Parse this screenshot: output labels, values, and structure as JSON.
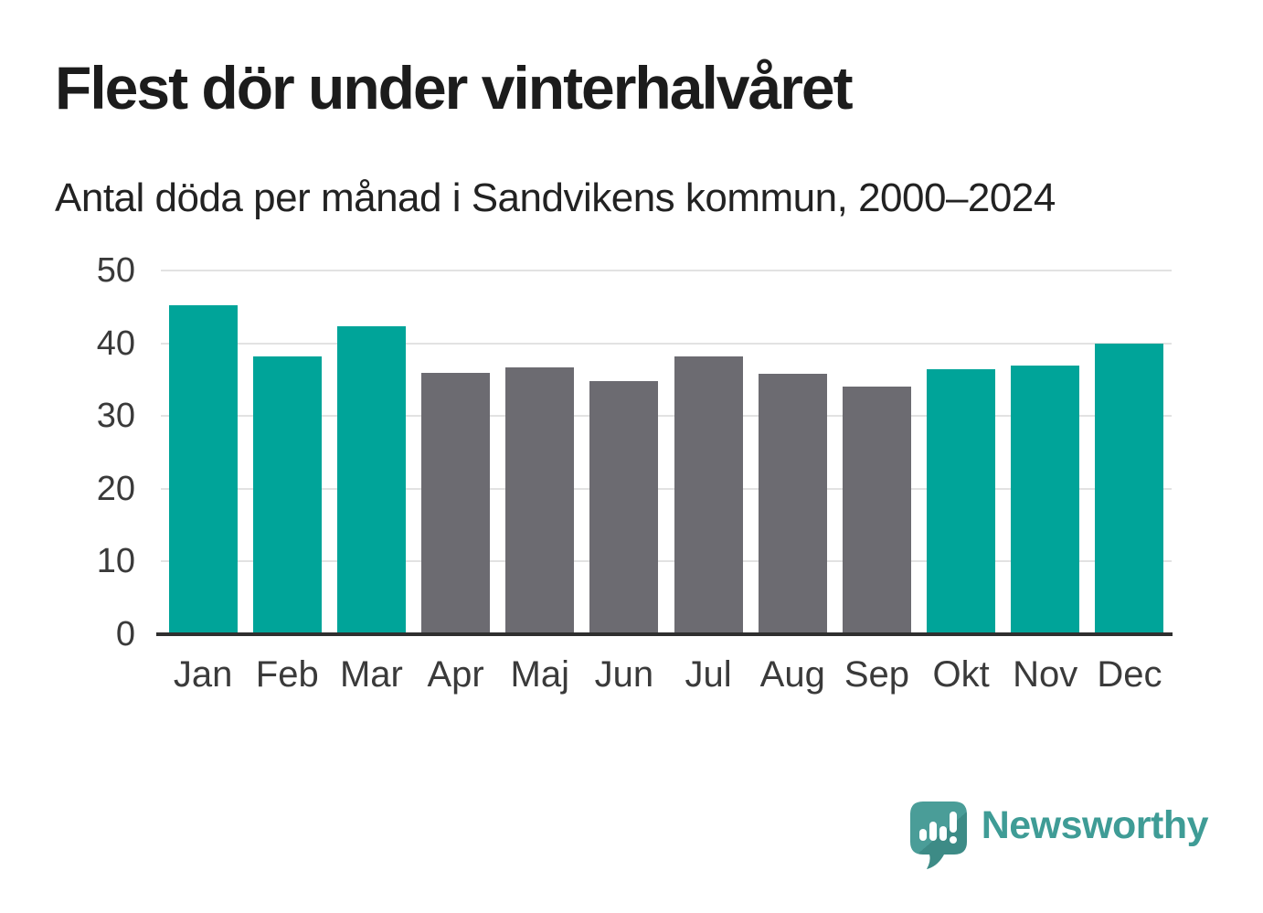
{
  "title": "Flest dör under vinterhalvåret",
  "subtitle": "Antal döda per månad i Sandvikens kommun, 2000–2024",
  "chart_data": {
    "type": "bar",
    "title": "Flest dör under vinterhalvåret",
    "subtitle": "Antal döda per månad i Sandvikens kommun, 2000–2024",
    "categories": [
      "Jan",
      "Feb",
      "Mar",
      "Apr",
      "Maj",
      "Jun",
      "Jul",
      "Aug",
      "Sep",
      "Okt",
      "Nov",
      "Dec"
    ],
    "values": [
      45.2,
      38.2,
      42.3,
      35.9,
      36.7,
      34.8,
      38.2,
      35.8,
      34.1,
      36.4,
      36.9,
      40.0
    ],
    "bar_colors": [
      "#00a499",
      "#00a499",
      "#00a499",
      "#6c6b71",
      "#6c6b71",
      "#6c6b71",
      "#6c6b71",
      "#6c6b71",
      "#6c6b71",
      "#00a499",
      "#00a499",
      "#00a499"
    ],
    "color_meaning": {
      "winter_halfyear_months": "#00a499",
      "summer_halfyear_months": "#6c6b71"
    },
    "xlabel": "",
    "ylabel": "",
    "ylim": [
      0,
      50
    ],
    "yticks": [
      0,
      10,
      20,
      30,
      40,
      50
    ],
    "grid": true,
    "legend_position": "none"
  },
  "branding": {
    "wordmark": "Newsworthy",
    "icon": "speech-bubble-bar-chart-icon",
    "brand_color": "#3f9c96"
  },
  "colors": {
    "background": "#ffffff",
    "winter_bar": "#00a499",
    "summer_bar": "#6c6b71",
    "gridline": "#e2e2e2",
    "axis_line": "#2f2f2f",
    "axis_text": "#3a3a3a",
    "heading_text": "#1c1c1c"
  }
}
